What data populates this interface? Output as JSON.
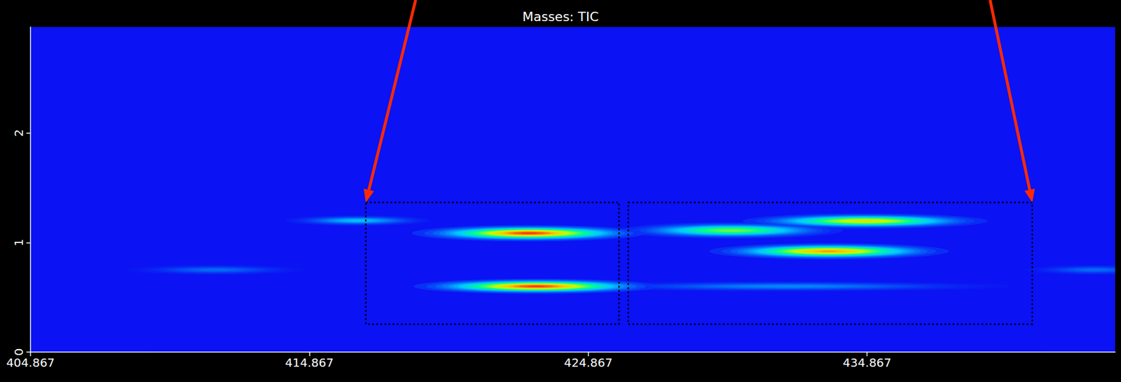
{
  "chart_data": {
    "type": "heatmap",
    "title": "Masses: TIC",
    "xlim": [
      404.867,
      443.76
    ],
    "xticks": [
      404.867,
      414.867,
      424.867,
      434.867
    ],
    "ylim": [
      0,
      2.967
    ],
    "yticks": [
      0,
      1,
      2
    ],
    "grid": false,
    "color_range": [
      0,
      1
    ],
    "spots": [
      {
        "x": 422.74,
        "y": 1.085,
        "intensity": 1.0,
        "x_width": 4.2,
        "y_width": 0.075
      },
      {
        "x": 423.0,
        "y": 0.6,
        "intensity": 1.0,
        "x_width": 4.4,
        "y_width": 0.07
      },
      {
        "x": 432.0,
        "y": 0.6,
        "intensity": 0.2,
        "x_width": 8.0,
        "y_width": 0.05
      },
      {
        "x": 433.5,
        "y": 0.92,
        "intensity": 0.9,
        "x_width": 4.3,
        "y_width": 0.075
      },
      {
        "x": 434.8,
        "y": 1.196,
        "intensity": 0.78,
        "x_width": 4.4,
        "y_width": 0.07
      },
      {
        "x": 430.0,
        "y": 1.11,
        "intensity": 0.62,
        "x_width": 4.0,
        "y_width": 0.075
      },
      {
        "x": 416.6,
        "y": 1.2,
        "intensity": 0.3,
        "x_width": 2.6,
        "y_width": 0.05
      },
      {
        "x": 411.5,
        "y": 0.75,
        "intensity": 0.15,
        "x_width": 3.2,
        "y_width": 0.05
      },
      {
        "x": 443.0,
        "y": 0.75,
        "intensity": 0.15,
        "x_width": 2.5,
        "y_width": 0.05
      }
    ],
    "boxes": [
      {
        "x": [
          416.89,
          425.97
        ],
        "y": [
          0.255,
          1.366
        ]
      },
      {
        "x": [
          426.3,
          440.79
        ],
        "y": [
          0.255,
          1.366
        ]
      }
    ]
  }
}
